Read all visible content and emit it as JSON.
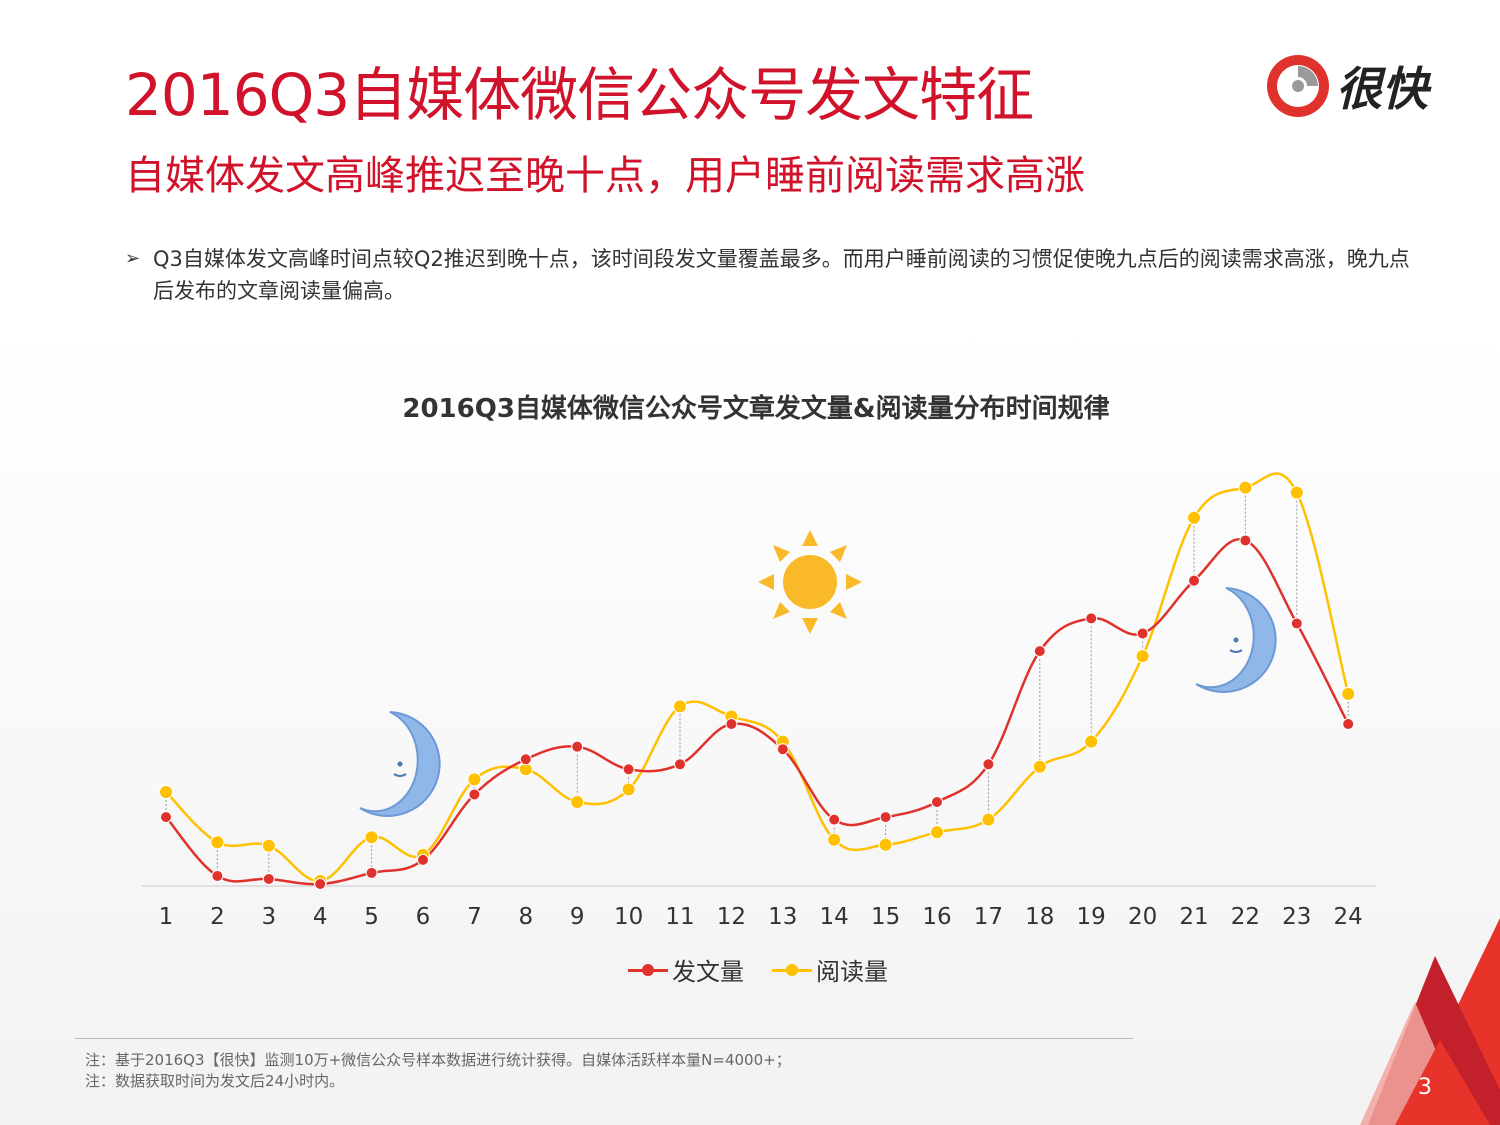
{
  "header": {
    "title": "2016Q3自媒体微信公众号发文特征",
    "subtitle": "自媒体发文高峰推迟至晚十点，用户睡前阅读需求高涨"
  },
  "logo": {
    "text": "很快",
    "icon": "kuai-logo-icon"
  },
  "bullet": {
    "icon": "➢",
    "text": "Q3自媒体发文高峰时间点较Q2推迟到晚十点，该时间段发文量覆盖最多。而用户睡前阅读的习惯促使晚九点后的阅读需求高涨，晚九点后发布的文章阅读量偏高。"
  },
  "chart_data": {
    "type": "line",
    "title": "2016Q3自媒体微信公众号文章发文量&阅读量分布时间规律",
    "categories": [
      "1",
      "2",
      "3",
      "4",
      "5",
      "6",
      "7",
      "8",
      "9",
      "10",
      "11",
      "12",
      "13",
      "14",
      "15",
      "16",
      "17",
      "18",
      "19",
      "20",
      "21",
      "22",
      "23",
      "24"
    ],
    "series": [
      {
        "name": "发文量",
        "color": "#e0322c",
        "values": [
          13.5,
          1.8,
          1.2,
          0.2,
          2.4,
          5.0,
          18.0,
          25.0,
          27.5,
          23.0,
          24.0,
          32.0,
          27.0,
          13.0,
          13.5,
          16.5,
          24.0,
          46.5,
          53.0,
          50.0,
          60.5,
          68.5,
          52.0,
          32.0
        ]
      },
      {
        "name": "阅读量",
        "color": "#ffc000",
        "values": [
          18.5,
          8.5,
          7.8,
          0.8,
          9.5,
          6.0,
          21.0,
          23.0,
          16.5,
          19.0,
          35.5,
          33.5,
          28.5,
          9.0,
          8.0,
          10.5,
          13.0,
          23.5,
          28.5,
          45.5,
          73.0,
          79.0,
          78.0,
          38.0
        ]
      }
    ],
    "ylim": [
      0,
      82
    ],
    "grid": false,
    "legend": "bottom-center",
    "annotations": [
      "moon-icon",
      "sun-icon",
      "moon-icon"
    ]
  },
  "notes": [
    "注：基于2016Q3【很快】监测10万+微信公众号样本数据进行统计获得。自媒体活跃样本量N=4000+；",
    "注：数据获取时间为发文后24小时内。"
  ],
  "page_number": "3"
}
